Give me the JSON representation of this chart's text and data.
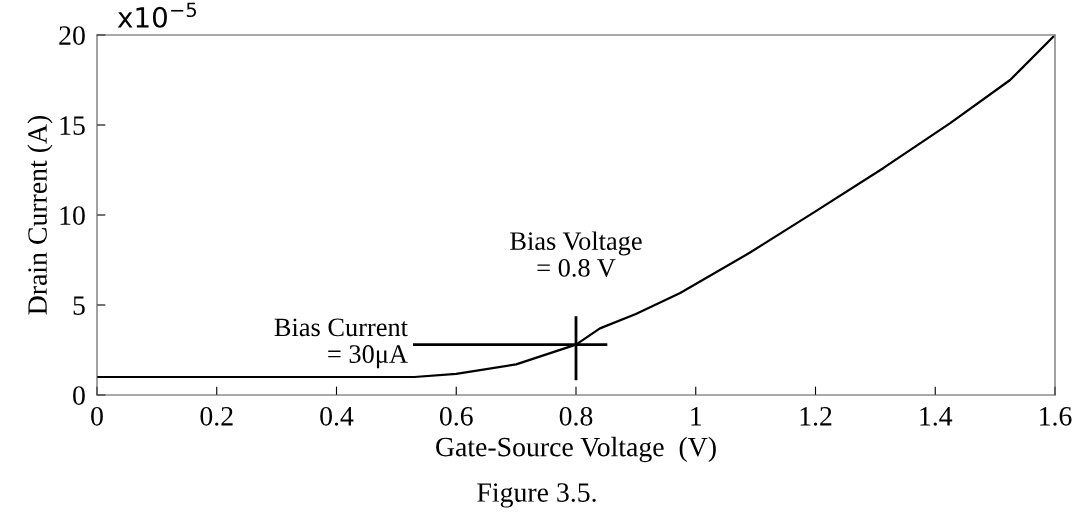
{
  "chart_data": {
    "type": "line",
    "xlabel": "Gate-Source Voltage  (V)",
    "ylabel": "Drain Current (A)",
    "x": [
      0,
      0.2,
      0.4,
      0.53,
      0.6,
      0.7,
      0.8,
      0.84,
      0.9,
      0.974,
      1.09,
      1.2,
      1.313,
      1.425,
      1.525,
      1.597
    ],
    "series": [
      {
        "color": "#000000",
        "values": [
          1.0,
          1.0,
          1.0,
          1.0,
          1.17,
          1.7,
          2.8,
          3.7,
          4.5,
          5.67,
          7.9,
          10.2,
          12.6,
          15.1,
          17.5,
          19.9
        ]
      }
    ],
    "xlim": [
      0,
      1.6
    ],
    "ylim": [
      0,
      20
    ],
    "xticks": [
      0,
      0.2,
      0.4,
      0.6,
      0.8,
      1,
      1.2,
      1.4,
      1.6
    ],
    "yticks": [
      0,
      5,
      10,
      15,
      20
    ],
    "grid": false,
    "legend": false,
    "marker": "none",
    "line_style": "solid",
    "annotations": [
      "x10$^{−5}$",
      {
        "text": "Bias Voltage\n= 0.8 V",
        "x": 0.8,
        "y": 2.8
      },
      "Bias Current\n= 30μA",
      "Figure 3.5."
    ]
  }
}
